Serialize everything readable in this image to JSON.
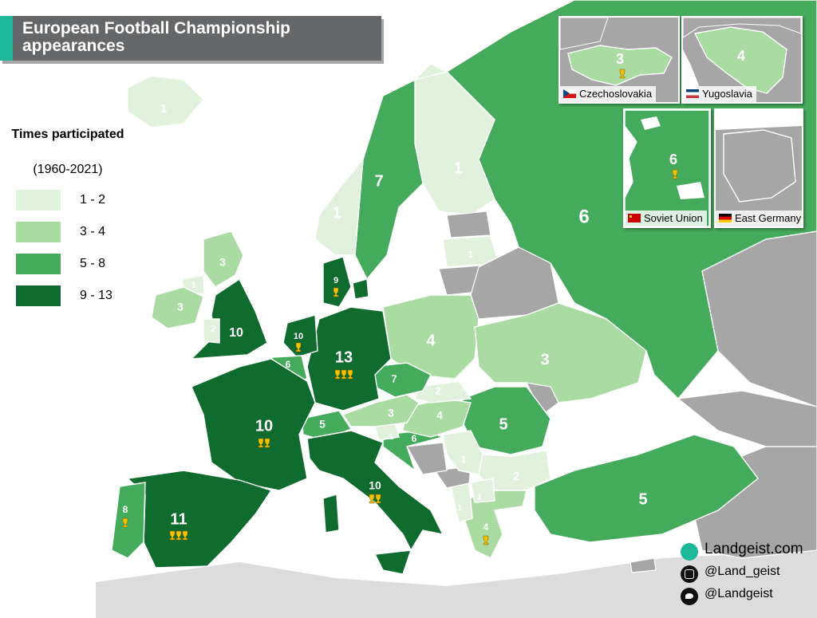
{
  "title": "European Football Championship appearances",
  "legend": {
    "title": "Times participated",
    "subtitle": "(1960-2021)",
    "items": [
      {
        "label": "1 - 2",
        "color": "#e2f1de"
      },
      {
        "label": "3 - 4",
        "color": "#a9dba2"
      },
      {
        "label": "5 - 8",
        "color": "#45ab5c"
      },
      {
        "label": "9 - 13",
        "color": "#0f6b2e"
      }
    ]
  },
  "map_labels": {
    "iceland": "1",
    "norway": "1",
    "sweden": "7",
    "finland": "1",
    "russia": "6",
    "scotland": "3",
    "n_ireland": "1",
    "ireland": "3",
    "wales": "2",
    "england": "10",
    "denmark": "9",
    "netherlands": "10",
    "belgium": "6",
    "germany": "13",
    "poland": "4",
    "ukraine": "3",
    "latvia": "1",
    "czechia": "7",
    "slovakia": "2",
    "austria": "3",
    "hungary": "4",
    "switzerland": "5",
    "slovenia": "1",
    "croatia": "6",
    "romania": "5",
    "france": "10",
    "italy": "10",
    "spain": "11",
    "portugal": "8",
    "serbia": "1",
    "bulgaria": "2",
    "albania": "1",
    "n_macedonia": "1",
    "greece": "4",
    "turkey": "5",
    "bosnia_dummy": ""
  },
  "trophies": {
    "germany": 3,
    "spain": 3,
    "france": 2,
    "italy": 2,
    "denmark": 1,
    "netherlands": 1,
    "portugal": 1,
    "greece": 1
  },
  "insets": [
    {
      "name": "Czechoslovakia",
      "value": "3",
      "trophies": 1,
      "flag": "czechoslovakia-flag"
    },
    {
      "name": "Yugoslavia",
      "value": "4",
      "trophies": 0,
      "flag": "yugoslavia-flag"
    },
    {
      "name": "Soviet Union",
      "value": "6",
      "trophies": 1,
      "flag": "soviet-union-flag"
    },
    {
      "name": "East Germany",
      "value": "",
      "trophies": 0,
      "flag": "east-germany-flag"
    }
  ],
  "credits": {
    "website": "Landgeist.com",
    "instagram": "@Land_geist",
    "twitter": "@Landgeist"
  }
}
